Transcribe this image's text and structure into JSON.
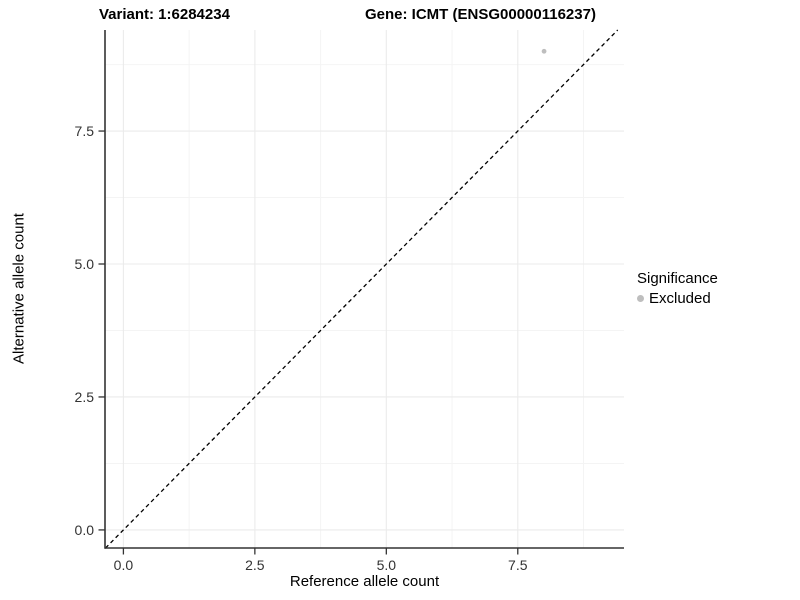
{
  "chart_data": {
    "type": "scatter",
    "title_left": "Variant: 1:6284234",
    "title_right": "Gene: ICMT (ENSG00000116237)",
    "xlabel": "Reference allele count",
    "ylabel": "Alternative allele count",
    "xlim": [
      -0.35,
      9.52
    ],
    "ylim": [
      -0.34,
      9.4
    ],
    "x_major_ticks": [
      0,
      2.5,
      5,
      7.5
    ],
    "x_tick_labels": [
      "0.0",
      "2.5",
      "5.0",
      "7.5"
    ],
    "x_minor_ticks": [
      1.25,
      3.75,
      6.25,
      8.75
    ],
    "y_major_ticks": [
      0,
      2.5,
      5,
      7.5
    ],
    "y_tick_labels": [
      "0.0",
      "2.5",
      "5.0",
      "7.5"
    ],
    "y_minor_ticks": [
      1.25,
      3.75,
      6.25,
      8.75
    ],
    "grid": true,
    "series": [
      {
        "name": "Excluded",
        "color": "#BEBEBE",
        "points": [
          {
            "x": 8,
            "y": 9
          }
        ]
      }
    ],
    "reference_line": {
      "type": "identity",
      "slope": 1,
      "intercept": 0,
      "style": "dashed",
      "color": "#000000"
    },
    "legend": {
      "position": "right",
      "title": "Significance",
      "items": [
        {
          "label": "Excluded",
          "color": "#BEBEBE"
        }
      ]
    }
  },
  "colors": {
    "background": "#FFFFFF",
    "major_grid": "#EBEBEB",
    "minor_grid": "#F4F4F4",
    "axis_line": "#333333",
    "tick_mark": "#333333",
    "tick_text": "#333333",
    "point": "#BEBEBE",
    "dashed_line": "#000000"
  }
}
